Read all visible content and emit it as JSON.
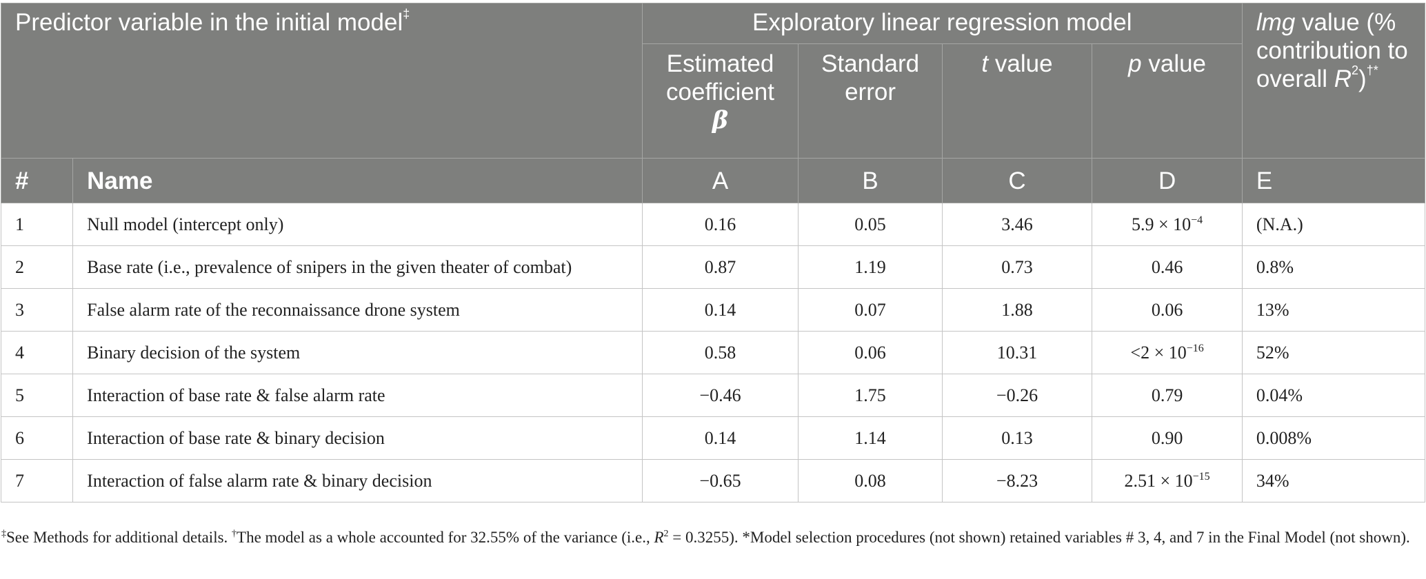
{
  "table": {
    "header": {
      "predictor_title": "Predictor variable in the initial model",
      "predictor_mark": "‡",
      "model_title": "Exploratory linear regression model",
      "lmg_word": "lmg",
      "lmg_rest": " value (% contribution to overall ",
      "lmg_r": "R",
      "lmg_sq": "2",
      "lmg_close": ")",
      "lmg_marks": "†*",
      "coef_text": "Estimated coefficient",
      "coef_symbol": "β",
      "se_text": "Standard error",
      "t_symbol": "t",
      "t_rest": " value",
      "p_symbol": "p",
      "p_rest": " value",
      "num_label": "#",
      "name_label": "Name",
      "letter_a": "A",
      "letter_b": "B",
      "letter_c": "C",
      "letter_d": "D",
      "letter_e": "E"
    },
    "rows": [
      {
        "num": "1",
        "name": "Null model (intercept only)",
        "coef": "0.16",
        "se": "0.05",
        "t": "3.46",
        "p": "5.9 × 10",
        "p_exp": "−4",
        "lmg": "(N.A.)"
      },
      {
        "num": "2",
        "name": "Base rate (i.e., prevalence of snipers in the given theater of combat)",
        "coef": "0.87",
        "se": "1.19",
        "t": "0.73",
        "p": "0.46",
        "p_exp": "",
        "lmg": "0.8%"
      },
      {
        "num": "3",
        "name": "False alarm rate of the reconnaissance drone system",
        "coef": "0.14",
        "se": "0.07",
        "t": "1.88",
        "p": "0.06",
        "p_exp": "",
        "lmg": "13%"
      },
      {
        "num": "4",
        "name": "Binary decision of the system",
        "coef": "0.58",
        "se": "0.06",
        "t": "10.31",
        "p": "<2 × 10",
        "p_exp": "−16",
        "lmg": "52%"
      },
      {
        "num": "5",
        "name": "Interaction of base rate & false alarm rate",
        "coef": "−0.46",
        "se": "1.75",
        "t": "−0.26",
        "p": "0.79",
        "p_exp": "",
        "lmg": "0.04%"
      },
      {
        "num": "6",
        "name": "Interaction of base rate & binary decision",
        "coef": "0.14",
        "se": "1.14",
        "t": "0.13",
        "p": "0.90",
        "p_exp": "",
        "lmg": "0.008%"
      },
      {
        "num": "7",
        "name": "Interaction of false alarm rate & binary decision",
        "coef": "−0.65",
        "se": "0.08",
        "t": "−8.23",
        "p": "2.51 × 10",
        "p_exp": "−15",
        "lmg": "34%"
      }
    ]
  },
  "footnote": {
    "mark1": "‡",
    "text1": "See Methods for additional details. ",
    "mark2": "†",
    "text2": "The model as a whole accounted for 32.55% of the variance (i.e., ",
    "r_symbol": "R",
    "r_sq": "2",
    "text3": " = 0.3255). *Model selection procedures (not shown) retained variables # 3, 4, and 7 in the Final Model (not shown)."
  }
}
